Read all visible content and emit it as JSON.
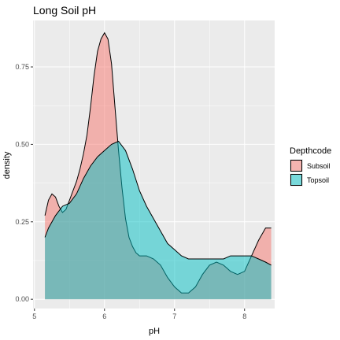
{
  "chart_data": {
    "type": "area",
    "title": "Long Soil pH",
    "xlabel": "pH",
    "ylabel": "density",
    "xlim": [
      4.98,
      8.43
    ],
    "ylim": [
      -0.03,
      0.9
    ],
    "x_ticks": [
      5,
      6,
      7,
      8
    ],
    "x_tick_labels": [
      "5",
      "6",
      "7",
      "8"
    ],
    "y_ticks": [
      0.0,
      0.25,
      0.5,
      0.75
    ],
    "y_tick_labels": [
      "0.00",
      "0.25",
      "0.50",
      "0.75"
    ],
    "grid": true,
    "legend": {
      "title": "Depthcode",
      "placement": "right"
    },
    "series": [
      {
        "name": "Subsoil",
        "color": "#F8766D",
        "x": [
          5.15,
          5.2,
          5.25,
          5.3,
          5.35,
          5.4,
          5.45,
          5.5,
          5.55,
          5.6,
          5.65,
          5.7,
          5.75,
          5.8,
          5.85,
          5.9,
          5.95,
          6.0,
          6.05,
          6.1,
          6.15,
          6.2,
          6.25,
          6.3,
          6.35,
          6.4,
          6.45,
          6.5,
          6.55,
          6.6,
          6.7,
          6.8,
          6.9,
          7.0,
          7.1,
          7.2,
          7.3,
          7.4,
          7.5,
          7.6,
          7.7,
          7.8,
          7.9,
          8.0,
          8.1,
          8.2,
          8.3,
          8.38
        ],
        "y": [
          0.27,
          0.32,
          0.34,
          0.33,
          0.3,
          0.28,
          0.29,
          0.32,
          0.35,
          0.38,
          0.42,
          0.47,
          0.53,
          0.62,
          0.72,
          0.8,
          0.84,
          0.86,
          0.84,
          0.76,
          0.62,
          0.48,
          0.36,
          0.26,
          0.2,
          0.17,
          0.15,
          0.14,
          0.14,
          0.14,
          0.13,
          0.11,
          0.07,
          0.04,
          0.02,
          0.02,
          0.04,
          0.08,
          0.11,
          0.12,
          0.11,
          0.09,
          0.08,
          0.09,
          0.14,
          0.19,
          0.23,
          0.23
        ]
      },
      {
        "name": "Topsoil",
        "color": "#00BFC4",
        "x": [
          5.15,
          5.2,
          5.3,
          5.4,
          5.5,
          5.6,
          5.7,
          5.8,
          5.9,
          6.0,
          6.1,
          6.2,
          6.3,
          6.4,
          6.5,
          6.6,
          6.7,
          6.8,
          6.9,
          7.0,
          7.1,
          7.2,
          7.3,
          7.4,
          7.5,
          7.6,
          7.7,
          7.8,
          7.9,
          8.0,
          8.1,
          8.2,
          8.3,
          8.38
        ],
        "y": [
          0.2,
          0.23,
          0.27,
          0.3,
          0.31,
          0.34,
          0.39,
          0.43,
          0.46,
          0.48,
          0.5,
          0.51,
          0.48,
          0.42,
          0.35,
          0.3,
          0.26,
          0.22,
          0.18,
          0.16,
          0.14,
          0.13,
          0.13,
          0.13,
          0.13,
          0.13,
          0.13,
          0.14,
          0.14,
          0.14,
          0.14,
          0.13,
          0.12,
          0.11
        ]
      }
    ]
  }
}
